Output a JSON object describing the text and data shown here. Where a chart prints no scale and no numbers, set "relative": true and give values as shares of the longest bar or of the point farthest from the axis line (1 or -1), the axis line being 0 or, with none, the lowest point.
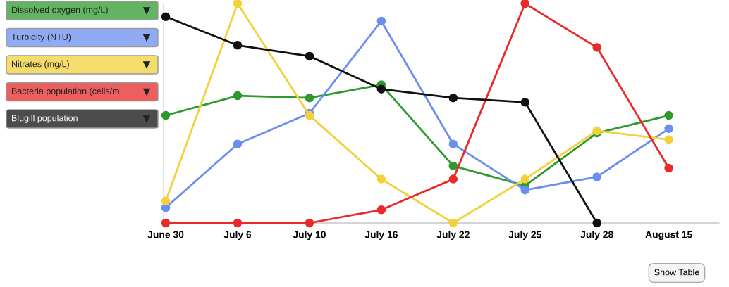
{
  "chart_data": {
    "type": "line",
    "relative": true,
    "marker": "circle",
    "line_style": "solid",
    "grid": false,
    "legend": "left",
    "categories": [
      "June 30",
      "July 6",
      "July 10",
      "July 16",
      "July 22",
      "July 25",
      "July 28",
      "August 15"
    ],
    "series": [
      {
        "name": "Dissolved oxygen (mg/L)",
        "color": "#2e9a2e",
        "values": [
          0.49,
          0.58,
          0.57,
          0.63,
          0.26,
          0.17,
          0.41,
          0.49
        ]
      },
      {
        "name": "Turbidity (NTU)",
        "color": "#6b8ff0",
        "values": [
          0.07,
          0.36,
          0.5,
          0.92,
          0.36,
          0.15,
          0.21,
          0.43
        ]
      },
      {
        "name": "Nitrates (mg/L)",
        "color": "#f2d23c",
        "values": [
          0.1,
          1,
          0.49,
          0.2,
          0,
          0.2,
          0.42,
          0.38
        ]
      },
      {
        "name": "Bacteria population (cells/m",
        "color": "#e82a2a",
        "values": [
          0,
          0,
          0,
          0.06,
          0.2,
          1,
          0.8,
          0.25
        ]
      },
      {
        "name": "Blugill population",
        "color": "#111111",
        "values": [
          0.94,
          0.81,
          0.76,
          0.61,
          0.57,
          0.55,
          0,
          null
        ]
      }
    ],
    "annotations": [
      "Show Table"
    ]
  }
}
